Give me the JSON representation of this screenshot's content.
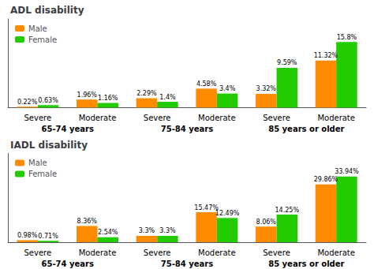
{
  "chart_data": [
    {
      "type": "bar",
      "title": "ADL disability",
      "groups": [
        "65-74 years",
        "75-84 years",
        "85 years or older"
      ],
      "categories": [
        "Severe",
        "Moderate",
        "Severe",
        "Moderate",
        "Severe",
        "Moderate"
      ],
      "series": [
        {
          "name": "Male",
          "color": "#FF8C00",
          "values": [
            0.22,
            1.96,
            2.29,
            4.58,
            3.32,
            11.32
          ],
          "value_labels": [
            "0.22%",
            "1.96%",
            "2.29%",
            "4.58%",
            "3.32%",
            "11.32%"
          ]
        },
        {
          "name": "Female",
          "color": "#22CC00",
          "values": [
            0.63,
            1.16,
            1.4,
            3.4,
            9.59,
            15.8
          ],
          "value_labels": [
            "0.63%",
            "1.16%",
            "1.4%",
            "3.4%",
            "9.59%",
            "15.8%"
          ]
        }
      ],
      "ylim": [
        0,
        21.33
      ],
      "tick_labels": "x",
      "grid": false,
      "legend": "upper left",
      "data_labels": true
    },
    {
      "type": "bar",
      "title": "IADL disability",
      "groups": [
        "65-74 years",
        "75-84 years",
        "85 years or older"
      ],
      "categories": [
        "Severe",
        "Moderate",
        "Severe",
        "Moderate",
        "Severe",
        "Moderate"
      ],
      "series": [
        {
          "name": "Male",
          "color": "#FF8C00",
          "values": [
            0.98,
            8.36,
            3.3,
            15.47,
            8.06,
            29.86
          ],
          "value_labels": [
            "0.98%",
            "8.36%",
            "3.3%",
            "15.47%",
            "8.06%",
            "29.86%"
          ]
        },
        {
          "name": "Female",
          "color": "#22CC00",
          "values": [
            0.71,
            2.54,
            3.3,
            12.49,
            14.25,
            33.94
          ],
          "value_labels": [
            "0.71%",
            "2.54%",
            "3.3%",
            "12.49%",
            "14.25%",
            "33.94%"
          ]
        }
      ],
      "ylim": [
        0,
        45.819
      ],
      "tick_labels": "x",
      "grid": false,
      "legend": "upper left",
      "data_labels": true
    }
  ]
}
